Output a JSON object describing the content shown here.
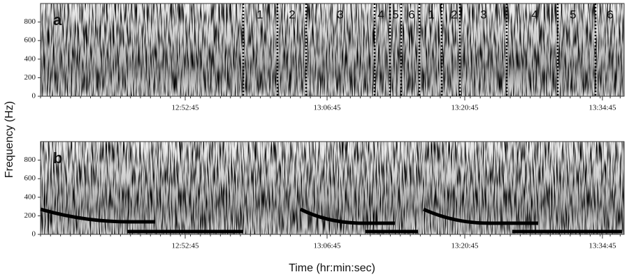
{
  "chart_data": [
    {
      "type": "spectrogram",
      "panel": "a",
      "ylim": [
        0,
        1000
      ],
      "yticks": [
        0,
        200,
        400,
        600,
        800
      ],
      "xticks": [
        "12:52:45",
        "13:06:45",
        "13:20:45",
        "13:34:45"
      ],
      "annotations": [
        "1",
        "2",
        "3",
        "4",
        "5",
        "6",
        "1",
        "2",
        "3",
        "4",
        "5",
        "6"
      ]
    },
    {
      "type": "spectrogram",
      "panel": "b",
      "ylim": [
        0,
        1000
      ],
      "yticks": [
        0,
        200,
        400,
        600,
        800
      ],
      "xticks": [
        "12:52:45",
        "13:06:45",
        "13:20:45",
        "13:34:45"
      ]
    }
  ],
  "ylabel": "Frequency (Hz)",
  "xlabel": "Time (hr:min:sec)"
}
